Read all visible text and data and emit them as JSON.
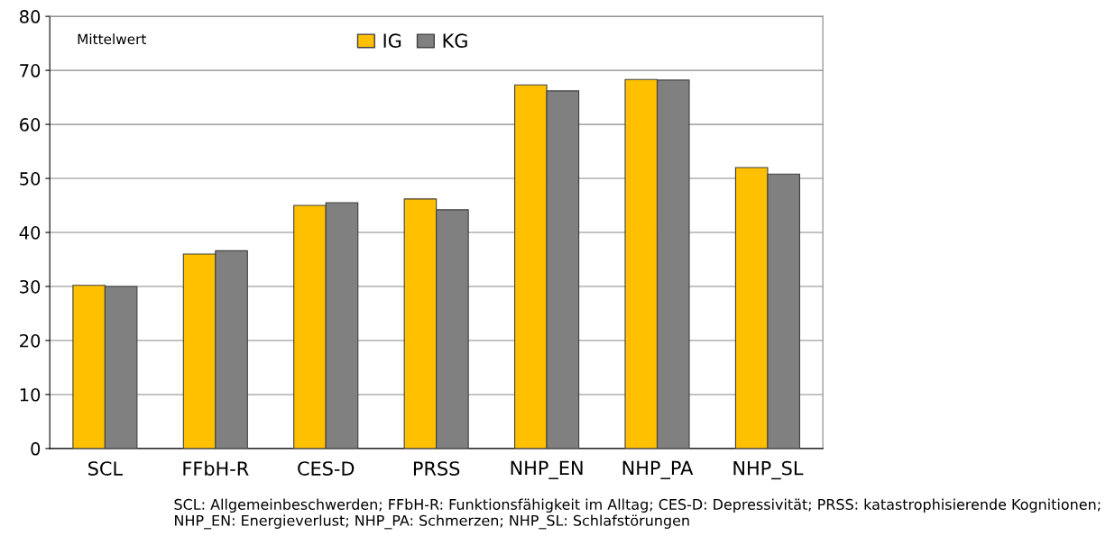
{
  "chart_data": {
    "type": "bar",
    "categories": [
      "SCL",
      "FFbH-R",
      "CES-D",
      "PRSS",
      "NHP_EN",
      "NHP_PA",
      "NHP_SL"
    ],
    "series": [
      {
        "name": "IG",
        "color": "#ffc000",
        "values": [
          30.2,
          36.0,
          45.0,
          46.2,
          67.3,
          68.3,
          52.0
        ]
      },
      {
        "name": "KG",
        "color": "#808080",
        "values": [
          30.0,
          36.6,
          45.5,
          44.2,
          66.2,
          68.2,
          50.8
        ]
      }
    ],
    "ylim": [
      0,
      80
    ],
    "yticks": [
      0,
      10,
      20,
      30,
      40,
      50,
      60,
      70,
      80
    ],
    "grid": "y",
    "legend": "top",
    "annotations": [
      "Mittelwert",
      "SCL: Allgemeinbeschwerden; FFbH-R: Funktionsfähigkeit im Alltag; CES-D: Depressivität; PRSS: katastrophisierende Kognitionen; NHP_EN: Energieverlust; NHP_PA: Schmerzen; NHP_SL: Schlafstörungen"
    ]
  }
}
